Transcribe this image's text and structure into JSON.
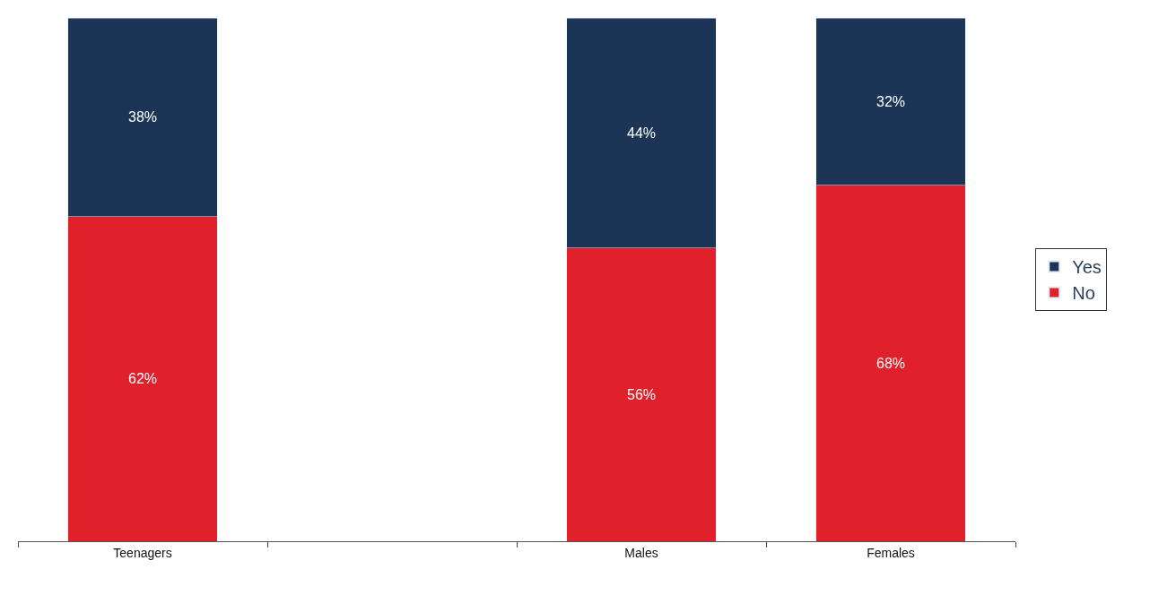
{
  "chart_data": {
    "type": "bar",
    "stacked": true,
    "categories": [
      "Teenagers",
      null,
      "Males",
      "Females"
    ],
    "ylim": [
      0,
      100
    ],
    "legend": "right",
    "series": [
      {
        "name": "No",
        "color": "#e0202a",
        "values": [
          62,
          null,
          56,
          68
        ],
        "value_labels": [
          "62%",
          null,
          "56%",
          "68%"
        ]
      },
      {
        "name": "Yes",
        "color": "#1c3557",
        "values": [
          38,
          null,
          44,
          32
        ],
        "value_labels": [
          "38%",
          null,
          "44%",
          "32%"
        ]
      }
    ]
  }
}
